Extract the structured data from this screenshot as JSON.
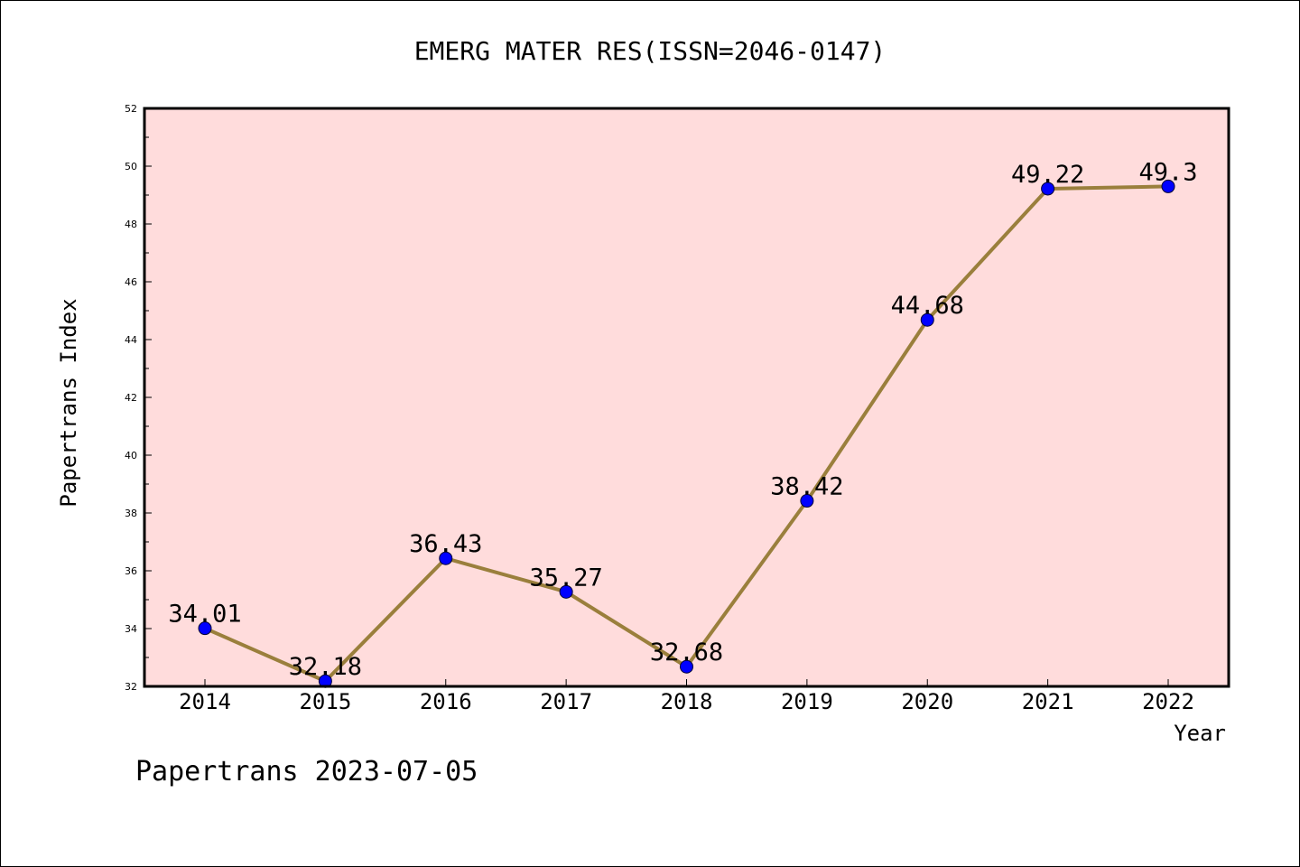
{
  "chart_data": {
    "type": "line",
    "title": "EMERG MATER RES(ISSN=2046-0147)",
    "xlabel": "Year",
    "ylabel": "Papertrans Index",
    "footer": "Papertrans 2023-07-05",
    "x": [
      "2014",
      "2015",
      "2016",
      "2017",
      "2018",
      "2019",
      "2020",
      "2021",
      "2022"
    ],
    "values": [
      34.01,
      32.18,
      36.43,
      35.27,
      32.68,
      38.42,
      44.68,
      49.22,
      49.3
    ],
    "labels": [
      "34.01",
      "32.18",
      "36.43",
      "35.27",
      "32.68",
      "38.42",
      "44.68",
      "49.22",
      "49.3"
    ],
    "ylim": [
      32,
      52
    ],
    "yticks": [
      "32",
      "34",
      "36",
      "38",
      "40",
      "42",
      "44",
      "46",
      "48",
      "50",
      "52"
    ],
    "grid": false,
    "colors": {
      "plot_bg": "#ffdcdc",
      "line": "#9a7f3c",
      "marker": "#0000ff"
    }
  }
}
